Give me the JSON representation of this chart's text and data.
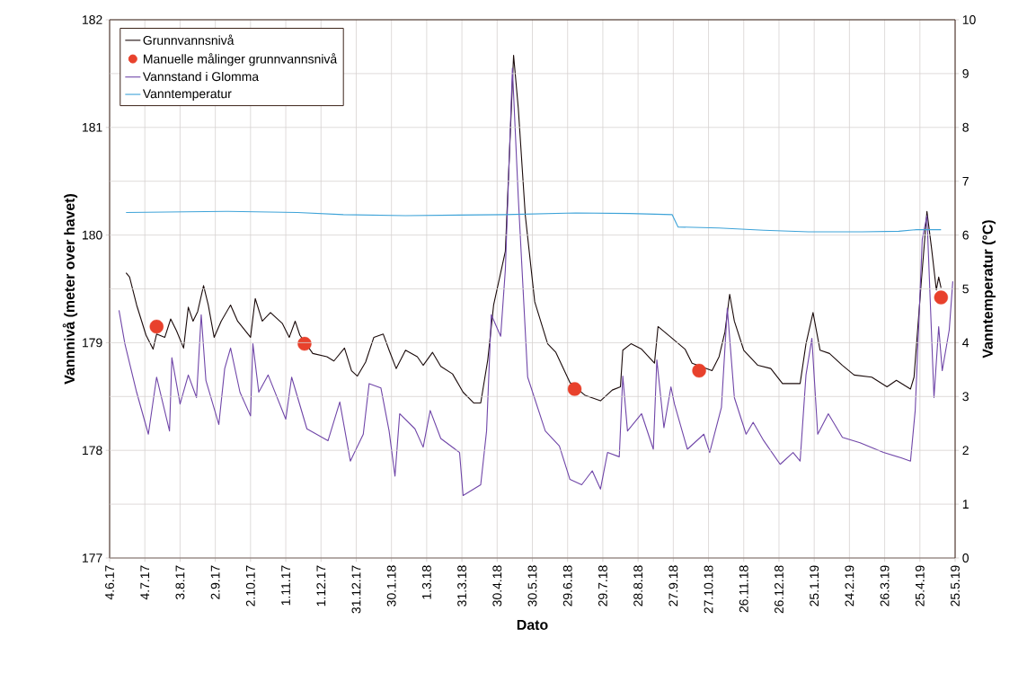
{
  "chart_data": {
    "type": "line",
    "xlabel": "Dato",
    "ylabel": "Vannnivå (meter over havet)",
    "y2label": "Vanntemperatur (°C)",
    "xlim": [
      "2017-06-04",
      "2019-05-25"
    ],
    "xticks": [
      {
        "value": "2017-06-04",
        "label": "4.6.17"
      },
      {
        "value": "2017-07-04",
        "label": "4.7.17"
      },
      {
        "value": "2017-08-03",
        "label": "3.8.17"
      },
      {
        "value": "2017-09-02",
        "label": "2.9.17"
      },
      {
        "value": "2017-10-02",
        "label": "2.10.17"
      },
      {
        "value": "2017-11-01",
        "label": "1.11.17"
      },
      {
        "value": "2017-12-01",
        "label": "1.12.17"
      },
      {
        "value": "2017-12-31",
        "label": "31.12.17"
      },
      {
        "value": "2018-01-30",
        "label": "30.1.18"
      },
      {
        "value": "2018-03-01",
        "label": "1.3.18"
      },
      {
        "value": "2018-03-31",
        "label": "31.3.18"
      },
      {
        "value": "2018-04-30",
        "label": "30.4.18"
      },
      {
        "value": "2018-05-30",
        "label": "30.5.18"
      },
      {
        "value": "2018-06-29",
        "label": "29.6.18"
      },
      {
        "value": "2018-07-29",
        "label": "29.7.18"
      },
      {
        "value": "2018-08-28",
        "label": "28.8.18"
      },
      {
        "value": "2018-09-27",
        "label": "27.9.18"
      },
      {
        "value": "2018-10-27",
        "label": "27.10.18"
      },
      {
        "value": "2018-11-26",
        "label": "26.11.18"
      },
      {
        "value": "2018-12-26",
        "label": "26.12.18"
      },
      {
        "value": "2019-01-25",
        "label": "25.1.19"
      },
      {
        "value": "2019-02-24",
        "label": "24.2.19"
      },
      {
        "value": "2019-03-26",
        "label": "26.3.19"
      },
      {
        "value": "2019-04-25",
        "label": "25.4.19"
      },
      {
        "value": "2019-05-25",
        "label": "25.5.19"
      }
    ],
    "ylim": [
      177,
      182
    ],
    "yticks": [
      177,
      178,
      179,
      180,
      181,
      182
    ],
    "y2lim": [
      0,
      10
    ],
    "y2ticks": [
      0,
      1,
      2,
      3,
      4,
      5,
      6,
      7,
      8,
      9,
      10
    ],
    "grid": true,
    "legend": "top left",
    "series": [
      {
        "name": "Grunnvannsnivå",
        "color": "#1a0a0a",
        "x": [
          "2017-06-18",
          "2017-06-21",
          "2017-06-27",
          "2017-07-05",
          "2017-07-11",
          "2017-07-14",
          "2017-07-21",
          "2017-07-26",
          "2017-07-31",
          "2017-08-06",
          "2017-08-10",
          "2017-08-14",
          "2017-08-18",
          "2017-08-23",
          "2017-08-27",
          "2017-09-01",
          "2017-09-07",
          "2017-09-15",
          "2017-09-21",
          "2017-10-02",
          "2017-10-06",
          "2017-10-12",
          "2017-10-19",
          "2017-10-29",
          "2017-11-04",
          "2017-11-09",
          "2017-11-13",
          "2017-11-24",
          "2017-12-06",
          "2017-12-12",
          "2017-12-21",
          "2017-12-27",
          "2018-01-01",
          "2018-01-08",
          "2018-01-15",
          "2018-01-23",
          "2018-01-28",
          "2018-02-03",
          "2018-02-11",
          "2018-02-21",
          "2018-02-26",
          "2018-03-06",
          "2018-03-13",
          "2018-03-23",
          "2018-04-01",
          "2018-04-10",
          "2018-04-16",
          "2018-04-22",
          "2018-04-27",
          "2018-05-03",
          "2018-05-07",
          "2018-05-14",
          "2018-05-18",
          "2018-05-24",
          "2018-06-01",
          "2018-06-12",
          "2018-06-19",
          "2018-07-01",
          "2018-07-14",
          "2018-07-27",
          "2018-08-06",
          "2018-08-13",
          "2018-08-15",
          "2018-08-22",
          "2018-08-31",
          "2018-09-11",
          "2018-09-14",
          "2018-09-25",
          "2018-10-07",
          "2018-10-13",
          "2018-10-30",
          "2018-11-05",
          "2018-11-10",
          "2018-11-14",
          "2018-11-18",
          "2018-11-26",
          "2018-12-08",
          "2018-12-19",
          "2018-12-29",
          "2019-01-13",
          "2019-01-18",
          "2019-01-24",
          "2019-01-30",
          "2019-02-07",
          "2019-02-18",
          "2019-02-28",
          "2019-03-15",
          "2019-03-28",
          "2019-04-05",
          "2019-04-17",
          "2019-04-20",
          "2019-04-26",
          "2019-05-01",
          "2019-05-05",
          "2019-05-09",
          "2019-05-11",
          "2019-05-13"
        ],
        "values": [
          179.65,
          179.61,
          179.35,
          179.07,
          178.94,
          179.08,
          179.05,
          179.22,
          179.11,
          178.95,
          179.33,
          179.2,
          179.29,
          179.53,
          179.35,
          179.05,
          179.2,
          179.35,
          179.2,
          179.05,
          179.41,
          179.2,
          179.28,
          179.18,
          179.05,
          179.2,
          179.07,
          178.9,
          178.87,
          178.83,
          178.95,
          178.74,
          178.69,
          178.82,
          179.05,
          179.08,
          178.93,
          178.76,
          178.93,
          178.87,
          178.79,
          178.91,
          178.78,
          178.71,
          178.54,
          178.44,
          178.44,
          178.84,
          179.35,
          179.65,
          179.85,
          181.67,
          181.18,
          180.18,
          179.38,
          178.99,
          178.91,
          178.63,
          178.51,
          178.46,
          178.56,
          178.59,
          178.93,
          178.99,
          178.94,
          178.81,
          179.15,
          179.05,
          178.94,
          178.81,
          178.74,
          178.87,
          179.1,
          179.45,
          179.2,
          178.93,
          178.79,
          178.76,
          178.62,
          178.62,
          178.99,
          179.28,
          178.93,
          178.9,
          178.79,
          178.7,
          178.68,
          178.59,
          178.65,
          178.57,
          178.68,
          179.54,
          180.22,
          179.87,
          179.49,
          179.61,
          179.51
        ]
      },
      {
        "name": "Manuelle målinger grunnvannsnivå",
        "type": "scatter",
        "marker": "circle",
        "color": "#e8412c",
        "x": [
          "2017-07-14",
          "2017-11-17",
          "2018-07-05",
          "2018-10-19",
          "2019-05-13"
        ],
        "values": [
          179.15,
          178.99,
          178.57,
          178.74,
          179.42
        ]
      },
      {
        "name": "Vannstand i Glomma",
        "color": "#7046a8",
        "x": [
          "2017-06-12",
          "2017-06-17",
          "2017-06-27",
          "2017-07-07",
          "2017-07-14",
          "2017-07-25",
          "2017-07-27",
          "2017-08-03",
          "2017-08-10",
          "2017-08-17",
          "2017-08-21",
          "2017-08-25",
          "2017-09-05",
          "2017-09-10",
          "2017-09-15",
          "2017-09-23",
          "2017-10-02",
          "2017-10-04",
          "2017-10-09",
          "2017-10-17",
          "2017-11-01",
          "2017-11-06",
          "2017-11-19",
          "2017-12-07",
          "2017-12-17",
          "2017-12-26",
          "2018-01-06",
          "2018-01-11",
          "2018-01-21",
          "2018-01-28",
          "2018-02-02",
          "2018-02-06",
          "2018-02-19",
          "2018-02-26",
          "2018-03-04",
          "2018-03-13",
          "2018-03-29",
          "2018-04-01",
          "2018-04-16",
          "2018-04-21",
          "2018-04-25",
          "2018-05-03",
          "2018-05-07",
          "2018-05-13",
          "2018-05-18",
          "2018-05-26",
          "2018-06-10",
          "2018-06-22",
          "2018-07-01",
          "2018-07-11",
          "2018-07-20",
          "2018-07-27",
          "2018-08-02",
          "2018-08-12",
          "2018-08-15",
          "2018-08-19",
          "2018-08-31",
          "2018-09-10",
          "2018-09-13",
          "2018-09-19",
          "2018-09-25",
          "2018-09-28",
          "2018-10-09",
          "2018-10-23",
          "2018-10-28",
          "2018-11-07",
          "2018-11-12",
          "2018-11-18",
          "2018-11-28",
          "2018-12-04",
          "2018-12-13",
          "2018-12-27",
          "2019-01-07",
          "2019-01-13",
          "2019-01-18",
          "2019-01-23",
          "2019-01-28",
          "2019-02-06",
          "2019-02-18",
          "2019-03-05",
          "2019-03-25",
          "2019-04-09",
          "2019-04-17",
          "2019-04-21",
          "2019-04-27",
          "2019-05-01",
          "2019-05-07",
          "2019-05-11",
          "2019-05-14",
          "2019-05-20",
          "2019-05-23"
        ],
        "values": [
          179.3,
          178.99,
          178.54,
          178.15,
          178.68,
          178.18,
          178.86,
          178.43,
          178.7,
          178.49,
          179.26,
          178.65,
          178.24,
          178.76,
          178.95,
          178.54,
          178.32,
          178.99,
          178.54,
          178.7,
          178.29,
          178.68,
          178.2,
          178.09,
          178.45,
          177.9,
          178.15,
          178.62,
          178.58,
          178.18,
          177.76,
          178.34,
          178.2,
          178.03,
          178.37,
          178.11,
          177.98,
          177.58,
          177.68,
          178.18,
          179.26,
          179.06,
          179.68,
          181.55,
          180.35,
          178.68,
          178.18,
          178.04,
          177.73,
          177.68,
          177.81,
          177.64,
          177.98,
          177.94,
          178.69,
          178.18,
          178.34,
          178.01,
          178.84,
          178.21,
          178.59,
          178.43,
          178.01,
          178.15,
          177.98,
          178.4,
          179.32,
          178.49,
          178.15,
          178.26,
          178.09,
          177.87,
          177.98,
          177.9,
          178.7,
          179.04,
          178.15,
          178.34,
          178.12,
          178.07,
          177.98,
          177.93,
          177.9,
          178.37,
          179.96,
          180.18,
          178.49,
          179.15,
          178.74,
          179.12,
          179.57
        ]
      },
      {
        "name": "Vanntemperatur",
        "axis": "y2",
        "color": "#3ea3d8",
        "x": [
          "2017-06-18",
          "2017-09-11",
          "2017-11-11",
          "2017-12-20",
          "2018-02-11",
          "2018-05-06",
          "2018-07-06",
          "2018-08-21",
          "2018-09-26",
          "2018-10-01",
          "2018-11-05",
          "2018-12-13",
          "2019-01-20",
          "2019-03-07",
          "2019-04-07",
          "2019-04-22",
          "2019-05-13"
        ],
        "values": [
          6.42,
          6.44,
          6.42,
          6.38,
          6.36,
          6.38,
          6.41,
          6.4,
          6.38,
          6.15,
          6.13,
          6.09,
          6.06,
          6.06,
          6.07,
          6.1,
          6.1
        ]
      }
    ]
  }
}
